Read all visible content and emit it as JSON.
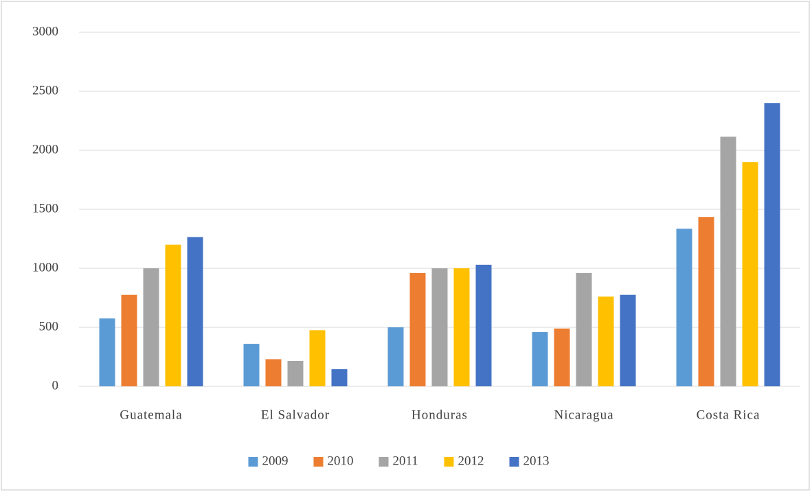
{
  "chart_data": {
    "type": "bar",
    "categories": [
      "Guatemala",
      "El Salvador",
      "Honduras",
      "Nicaragua",
      "Costa Rica"
    ],
    "series": [
      {
        "name": "2009",
        "color": "#5b9bd5",
        "values": [
          575,
          360,
          500,
          460,
          1335
        ]
      },
      {
        "name": "2010",
        "color": "#ed7d31",
        "values": [
          775,
          230,
          960,
          490,
          1435
        ]
      },
      {
        "name": "2011",
        "color": "#a5a5a5",
        "values": [
          1000,
          215,
          1000,
          960,
          2115
        ]
      },
      {
        "name": "2012",
        "color": "#ffc000",
        "values": [
          1200,
          475,
          1000,
          760,
          1900
        ]
      },
      {
        "name": "2013",
        "color": "#4472c4",
        "values": [
          1265,
          145,
          1030,
          775,
          2400
        ]
      }
    ],
    "ylim": [
      0,
      3000
    ],
    "yticks": [
      0,
      500,
      1000,
      1500,
      2000,
      2500,
      3000
    ],
    "grid": true,
    "legend": "bottom"
  }
}
